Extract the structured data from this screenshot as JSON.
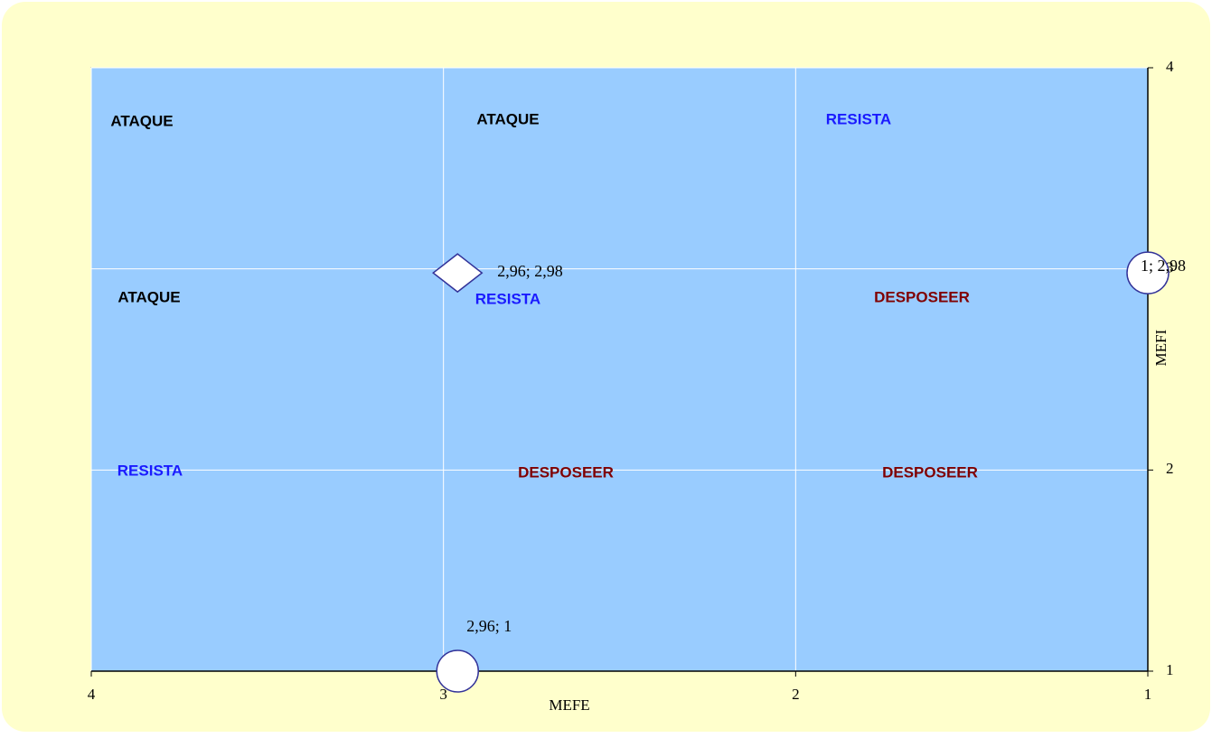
{
  "chart_data": {
    "type": "scatter",
    "xlabel": "MEFE",
    "ylabel": "MEFI",
    "xlim": [
      4,
      1
    ],
    "xticks": [
      4,
      3,
      2,
      1
    ],
    "ylim": [
      1,
      4
    ],
    "yticks": [
      1,
      2,
      3,
      4
    ],
    "grid": true,
    "series": [
      {
        "marker": "diamond",
        "color": "#ffffff",
        "x": [
          2.96
        ],
        "values": [
          2.98
        ],
        "value_labels": [
          "2,96; 2,98"
        ]
      },
      {
        "marker": "circle",
        "color": "#ffffff",
        "x": [
          2.96
        ],
        "values": [
          1
        ],
        "value_labels": [
          "2,96; 1"
        ]
      },
      {
        "marker": "circle",
        "color": "#ffffff",
        "x": [
          1
        ],
        "values": [
          2.98
        ],
        "value_labels": [
          "1; 2,98"
        ]
      }
    ],
    "annotations": [
      {
        "text": "ATAQUE",
        "color": "#000000"
      },
      {
        "text": "ATAQUE",
        "color": "#000000"
      },
      {
        "text": "RESISTA",
        "color": "#1a1aff"
      },
      {
        "text": "ATAQUE",
        "color": "#000000"
      },
      {
        "text": "RESISTA",
        "color": "#1a1aff"
      },
      {
        "text": "DESPOSEER",
        "color": "#800000"
      },
      {
        "text": "RESISTA",
        "color": "#1a1aff"
      },
      {
        "text": "DESPOSEER",
        "color": "#800000"
      },
      {
        "text": "DESPOSEER",
        "color": "#800000"
      }
    ]
  }
}
